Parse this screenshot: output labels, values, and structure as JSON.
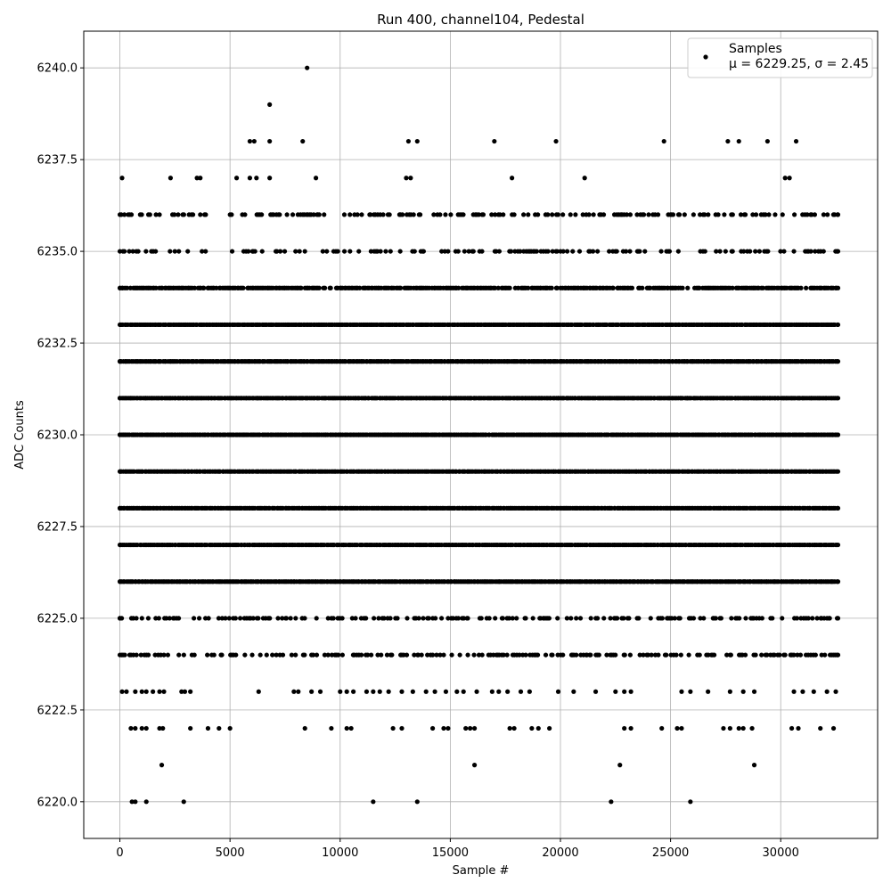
{
  "chart_data": {
    "type": "scatter",
    "title": "Run 400, channel104, Pedestal",
    "xlabel": "Sample #",
    "ylabel": "ADC Counts",
    "xlim": [
      -1640,
      34400
    ],
    "ylim": [
      6219,
      6241
    ],
    "x_ticks": [
      0,
      5000,
      10000,
      15000,
      20000,
      25000,
      30000
    ],
    "x_tick_labels": [
      "0",
      "5000",
      "10000",
      "15000",
      "20000",
      "25000",
      "30000"
    ],
    "y_ticks": [
      6220.0,
      6222.5,
      6225.0,
      6227.5,
      6230.0,
      6232.5,
      6235.0,
      6237.5,
      6240.0
    ],
    "y_tick_labels": [
      "6220.0",
      "6222.5",
      "6225.0",
      "6227.5",
      "6230.0",
      "6232.5",
      "6235.0",
      "6237.5",
      "6240.0"
    ],
    "grid": true,
    "legend_position": "top-right",
    "series": [
      {
        "name": "Samples",
        "label_line2": "μ = 6229.25, σ = 2.45",
        "color": "#000000",
        "x_range": [
          0,
          32600
        ],
        "levels": [
          {
            "y": 6226,
            "x_ranges": [
              [
                0,
                32600
              ]
            ]
          },
          {
            "y": 6227,
            "x_ranges": [
              [
                0,
                32600
              ]
            ]
          },
          {
            "y": 6228,
            "x_ranges": [
              [
                0,
                32600
              ]
            ]
          },
          {
            "y": 6229,
            "x_ranges": [
              [
                0,
                32600
              ]
            ]
          },
          {
            "y": 6230,
            "x_ranges": [
              [
                0,
                32600
              ]
            ]
          },
          {
            "y": 6231,
            "x_ranges": [
              [
                0,
                32600
              ]
            ]
          },
          {
            "y": 6232,
            "x_ranges": [
              [
                0,
                32600
              ]
            ]
          },
          {
            "y": 6233,
            "x_ranges": [
              [
                0,
                32600
              ]
            ]
          },
          {
            "y": 6234,
            "x_ranges": [
              [
                0,
                32600
              ]
            ]
          },
          {
            "y": 6224,
            "x_ranges": [
              [
                0,
                32600
              ]
            ]
          },
          {
            "y": 6225,
            "x_ranges": [
              [
                0,
                32600
              ]
            ]
          },
          {
            "y": 6235,
            "x_ranges": [
              [
                0,
                32600
              ]
            ]
          },
          {
            "y": 6236,
            "x_ranges": [
              [
                0,
                32600
              ]
            ]
          }
        ],
        "points": [
          {
            "x": 100,
            "y": 6237
          },
          {
            "x": 2300,
            "y": 6237
          },
          {
            "x": 3500,
            "y": 6237
          },
          {
            "x": 3650,
            "y": 6237
          },
          {
            "x": 5300,
            "y": 6237
          },
          {
            "x": 5900,
            "y": 6237
          },
          {
            "x": 6200,
            "y": 6237
          },
          {
            "x": 6800,
            "y": 6237
          },
          {
            "x": 8900,
            "y": 6237
          },
          {
            "x": 13000,
            "y": 6237
          },
          {
            "x": 13200,
            "y": 6237
          },
          {
            "x": 17800,
            "y": 6237
          },
          {
            "x": 21100,
            "y": 6237
          },
          {
            "x": 30200,
            "y": 6237
          },
          {
            "x": 30400,
            "y": 6237
          },
          {
            "x": 5900,
            "y": 6238
          },
          {
            "x": 6100,
            "y": 6238
          },
          {
            "x": 6800,
            "y": 6238
          },
          {
            "x": 8300,
            "y": 6238
          },
          {
            "x": 13100,
            "y": 6238
          },
          {
            "x": 13500,
            "y": 6238
          },
          {
            "x": 17000,
            "y": 6238
          },
          {
            "x": 19800,
            "y": 6238
          },
          {
            "x": 24700,
            "y": 6238
          },
          {
            "x": 27600,
            "y": 6238
          },
          {
            "x": 28100,
            "y": 6238
          },
          {
            "x": 29400,
            "y": 6238
          },
          {
            "x": 30700,
            "y": 6238
          },
          {
            "x": 6800,
            "y": 6239
          },
          {
            "x": 8500,
            "y": 6240
          },
          {
            "x": 100,
            "y": 6223
          },
          {
            "x": 300,
            "y": 6223
          },
          {
            "x": 700,
            "y": 6223
          },
          {
            "x": 1000,
            "y": 6223
          },
          {
            "x": 1200,
            "y": 6223
          },
          {
            "x": 1500,
            "y": 6223
          },
          {
            "x": 1800,
            "y": 6223
          },
          {
            "x": 2000,
            "y": 6223
          },
          {
            "x": 2800,
            "y": 6223
          },
          {
            "x": 2950,
            "y": 6223
          },
          {
            "x": 3200,
            "y": 6223
          },
          {
            "x": 6300,
            "y": 6223
          },
          {
            "x": 7900,
            "y": 6223
          },
          {
            "x": 8100,
            "y": 6223
          },
          {
            "x": 8700,
            "y": 6223
          },
          {
            "x": 9100,
            "y": 6223
          },
          {
            "x": 10000,
            "y": 6223
          },
          {
            "x": 10300,
            "y": 6223
          },
          {
            "x": 10600,
            "y": 6223
          },
          {
            "x": 11200,
            "y": 6223
          },
          {
            "x": 11500,
            "y": 6223
          },
          {
            "x": 11800,
            "y": 6223
          },
          {
            "x": 12200,
            "y": 6223
          },
          {
            "x": 12800,
            "y": 6223
          },
          {
            "x": 13300,
            "y": 6223
          },
          {
            "x": 13900,
            "y": 6223
          },
          {
            "x": 14300,
            "y": 6223
          },
          {
            "x": 14800,
            "y": 6223
          },
          {
            "x": 15300,
            "y": 6223
          },
          {
            "x": 15600,
            "y": 6223
          },
          {
            "x": 16200,
            "y": 6223
          },
          {
            "x": 16900,
            "y": 6223
          },
          {
            "x": 17200,
            "y": 6223
          },
          {
            "x": 17600,
            "y": 6223
          },
          {
            "x": 18200,
            "y": 6223
          },
          {
            "x": 18600,
            "y": 6223
          },
          {
            "x": 19900,
            "y": 6223
          },
          {
            "x": 20600,
            "y": 6223
          },
          {
            "x": 21600,
            "y": 6223
          },
          {
            "x": 22500,
            "y": 6223
          },
          {
            "x": 22900,
            "y": 6223
          },
          {
            "x": 23200,
            "y": 6223
          },
          {
            "x": 25500,
            "y": 6223
          },
          {
            "x": 25900,
            "y": 6223
          },
          {
            "x": 26700,
            "y": 6223
          },
          {
            "x": 27700,
            "y": 6223
          },
          {
            "x": 28300,
            "y": 6223
          },
          {
            "x": 28800,
            "y": 6223
          },
          {
            "x": 30600,
            "y": 6223
          },
          {
            "x": 31000,
            "y": 6223
          },
          {
            "x": 31500,
            "y": 6223
          },
          {
            "x": 32100,
            "y": 6223
          },
          {
            "x": 32500,
            "y": 6223
          },
          {
            "x": 500,
            "y": 6222
          },
          {
            "x": 700,
            "y": 6222
          },
          {
            "x": 1000,
            "y": 6222
          },
          {
            "x": 1200,
            "y": 6222
          },
          {
            "x": 1800,
            "y": 6222
          },
          {
            "x": 1950,
            "y": 6222
          },
          {
            "x": 3200,
            "y": 6222
          },
          {
            "x": 4000,
            "y": 6222
          },
          {
            "x": 4500,
            "y": 6222
          },
          {
            "x": 5000,
            "y": 6222
          },
          {
            "x": 8400,
            "y": 6222
          },
          {
            "x": 9600,
            "y": 6222
          },
          {
            "x": 10300,
            "y": 6222
          },
          {
            "x": 10500,
            "y": 6222
          },
          {
            "x": 12400,
            "y": 6222
          },
          {
            "x": 12800,
            "y": 6222
          },
          {
            "x": 14200,
            "y": 6222
          },
          {
            "x": 14700,
            "y": 6222
          },
          {
            "x": 14900,
            "y": 6222
          },
          {
            "x": 15700,
            "y": 6222
          },
          {
            "x": 15900,
            "y": 6222
          },
          {
            "x": 16100,
            "y": 6222
          },
          {
            "x": 17700,
            "y": 6222
          },
          {
            "x": 17900,
            "y": 6222
          },
          {
            "x": 18700,
            "y": 6222
          },
          {
            "x": 19000,
            "y": 6222
          },
          {
            "x": 19500,
            "y": 6222
          },
          {
            "x": 22900,
            "y": 6222
          },
          {
            "x": 23200,
            "y": 6222
          },
          {
            "x": 24600,
            "y": 6222
          },
          {
            "x": 25300,
            "y": 6222
          },
          {
            "x": 25500,
            "y": 6222
          },
          {
            "x": 27400,
            "y": 6222
          },
          {
            "x": 27700,
            "y": 6222
          },
          {
            "x": 28100,
            "y": 6222
          },
          {
            "x": 28300,
            "y": 6222
          },
          {
            "x": 28700,
            "y": 6222
          },
          {
            "x": 30500,
            "y": 6222
          },
          {
            "x": 30800,
            "y": 6222
          },
          {
            "x": 31800,
            "y": 6222
          },
          {
            "x": 32400,
            "y": 6222
          },
          {
            "x": 1900,
            "y": 6221
          },
          {
            "x": 16100,
            "y": 6221
          },
          {
            "x": 22700,
            "y": 6221
          },
          {
            "x": 28800,
            "y": 6221
          },
          {
            "x": 550,
            "y": 6220
          },
          {
            "x": 700,
            "y": 6220
          },
          {
            "x": 1200,
            "y": 6220
          },
          {
            "x": 2900,
            "y": 6220
          },
          {
            "x": 11500,
            "y": 6220
          },
          {
            "x": 13500,
            "y": 6220
          },
          {
            "x": 22300,
            "y": 6220
          },
          {
            "x": 25900,
            "y": 6220
          }
        ]
      }
    ]
  }
}
